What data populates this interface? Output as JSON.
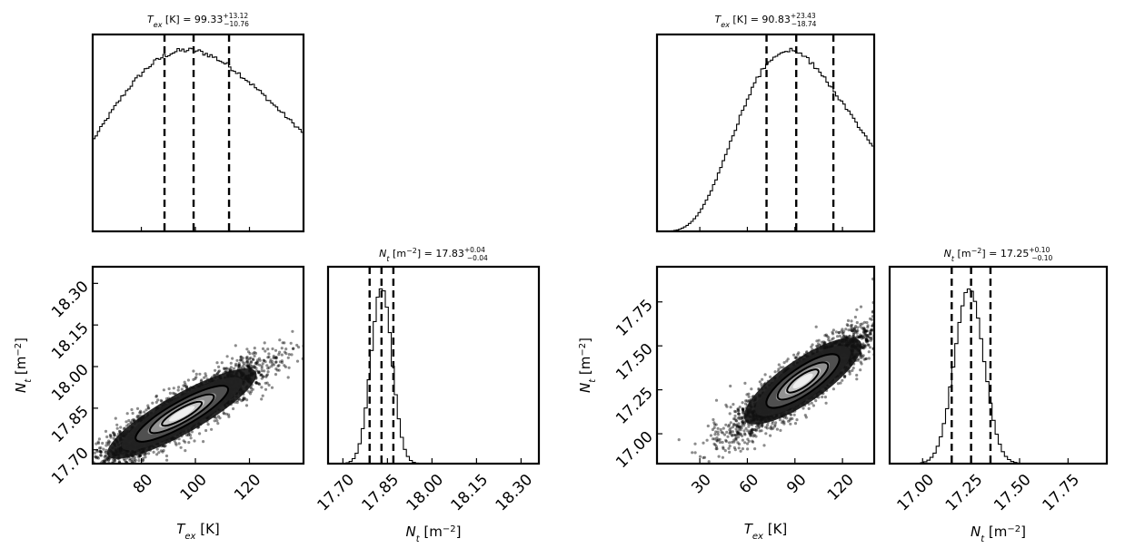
{
  "chart_data": [
    {
      "type": "corner",
      "panel_titles": {
        "tex": {
          "var": "T",
          "sub": "ex",
          "unit": " [K] = ",
          "value": "99.33",
          "plus": "+13.12",
          "minus": "−10.76"
        },
        "nt": {
          "var": "N",
          "sub": "t",
          "unit": " [m",
          "unit_exp": "−2",
          "unit_end": "] = ",
          "value": "17.83",
          "plus": "+0.04",
          "minus": "−0.04"
        }
      },
      "labels": {
        "x1": {
          "var": "T",
          "sub": "ex",
          "rest": " [K]"
        },
        "x2": {
          "var": "N",
          "sub": "t",
          "rest": " [m",
          "exp": "−2",
          "end": "]"
        },
        "y": {
          "var": "N",
          "sub": "t",
          "rest": " [m",
          "exp": "−2",
          "end": "]"
        }
      },
      "tex_ticks": [
        "80",
        "100",
        "120"
      ],
      "nt_ticks": [
        "17.70",
        "17.85",
        "18.00",
        "18.15",
        "18.30"
      ],
      "tex_range": [
        62,
        140
      ],
      "nt_range": [
        17.65,
        18.36
      ],
      "tex_quantiles": [
        88.57,
        99.33,
        112.45
      ],
      "nt_quantiles": [
        17.79,
        17.83,
        17.87
      ],
      "tex_mode": 97,
      "nt_mode": 17.83,
      "nt_sigma": 0.035,
      "ellipse": {
        "cx": 95,
        "cy": 17.83,
        "rx_tex": 30,
        "ry_nt": 0.075,
        "slope": 0.0055
      }
    },
    {
      "type": "corner",
      "panel_titles": {
        "tex": {
          "var": "T",
          "sub": "ex",
          "unit": " [K] = ",
          "value": "90.83",
          "plus": "+23.43",
          "minus": "−18.74"
        },
        "nt": {
          "var": "N",
          "sub": "t",
          "unit": " [m",
          "unit_exp": "−2",
          "unit_end": "] = ",
          "value": "17.25",
          "plus": "+0.10",
          "minus": "−0.10"
        }
      },
      "labels": {
        "x1": {
          "var": "T",
          "sub": "ex",
          "rest": " [K]"
        },
        "x2": {
          "var": "N",
          "sub": "t",
          "rest": " [m",
          "exp": "−2",
          "end": "]"
        },
        "y": {
          "var": "N",
          "sub": "t",
          "rest": " [m",
          "exp": "−2",
          "end": "]"
        }
      },
      "tex_ticks": [
        "30",
        "60",
        "90",
        "120"
      ],
      "nt_ticks": [
        "17.00",
        "17.25",
        "17.50",
        "17.75"
      ],
      "tex_range": [
        3,
        140
      ],
      "nt_range": [
        16.83,
        17.95
      ],
      "tex_quantiles": [
        72.09,
        90.83,
        114.26
      ],
      "nt_quantiles": [
        17.15,
        17.25,
        17.35
      ],
      "tex_mode": 86,
      "nt_mode": 17.24,
      "nt_sigma": 0.075,
      "ellipse": {
        "cx": 95,
        "cy": 17.3,
        "rx_tex": 42,
        "ry_nt": 0.13,
        "slope": 0.0062
      }
    }
  ]
}
